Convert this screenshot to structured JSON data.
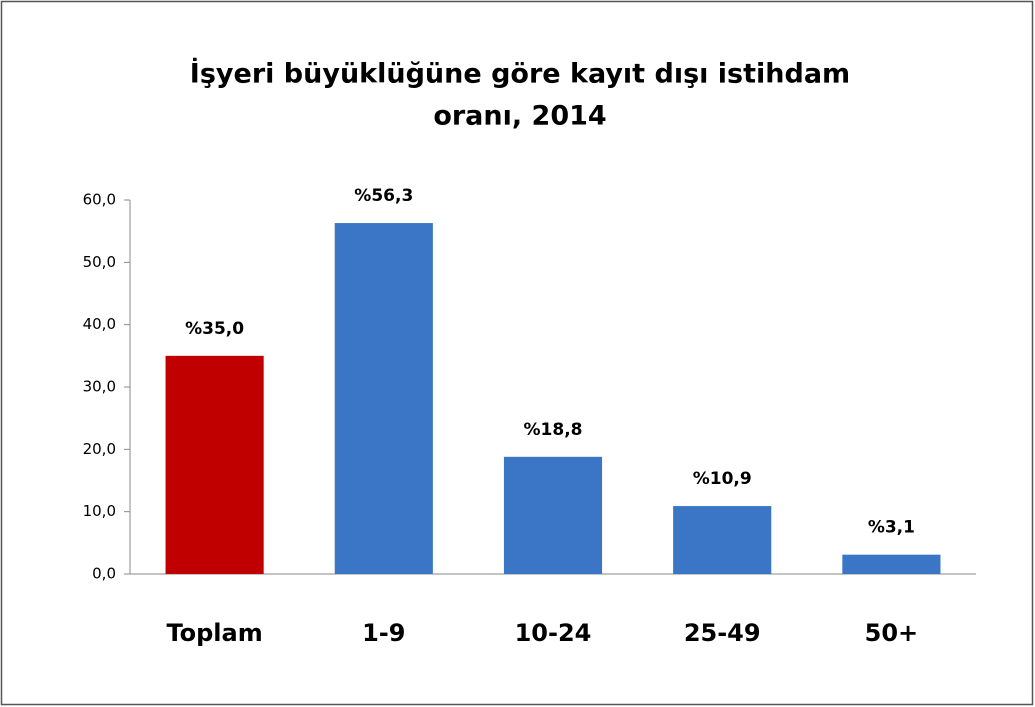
{
  "chart_data": {
    "type": "bar",
    "title": [
      "İşyeri  büyüklüğüne göre kayıt dışı istihdam",
      "oranı, 2014"
    ],
    "categories": [
      "Toplam",
      "1-9",
      "10-24",
      "25-49",
      "50+"
    ],
    "values": [
      35.0,
      56.3,
      18.8,
      10.9,
      3.1
    ],
    "value_labels": [
      "%35,0",
      "%56,3",
      "%18,8",
      "%10,9",
      "%3,1"
    ],
    "colors": [
      "#c00000",
      "#3b76c6",
      "#3b76c6",
      "#3b76c6",
      "#3b76c6"
    ],
    "ylim": [
      0,
      60
    ],
    "yticks": [
      {
        "value": 0,
        "label": "0,0"
      },
      {
        "value": 10,
        "label": "10,0"
      },
      {
        "value": 20,
        "label": "20,0"
      },
      {
        "value": 30,
        "label": "30,0"
      },
      {
        "value": 40,
        "label": "40,0"
      },
      {
        "value": 50,
        "label": "50,0"
      },
      {
        "value": 60,
        "label": "60,0"
      }
    ],
    "grid": false
  }
}
